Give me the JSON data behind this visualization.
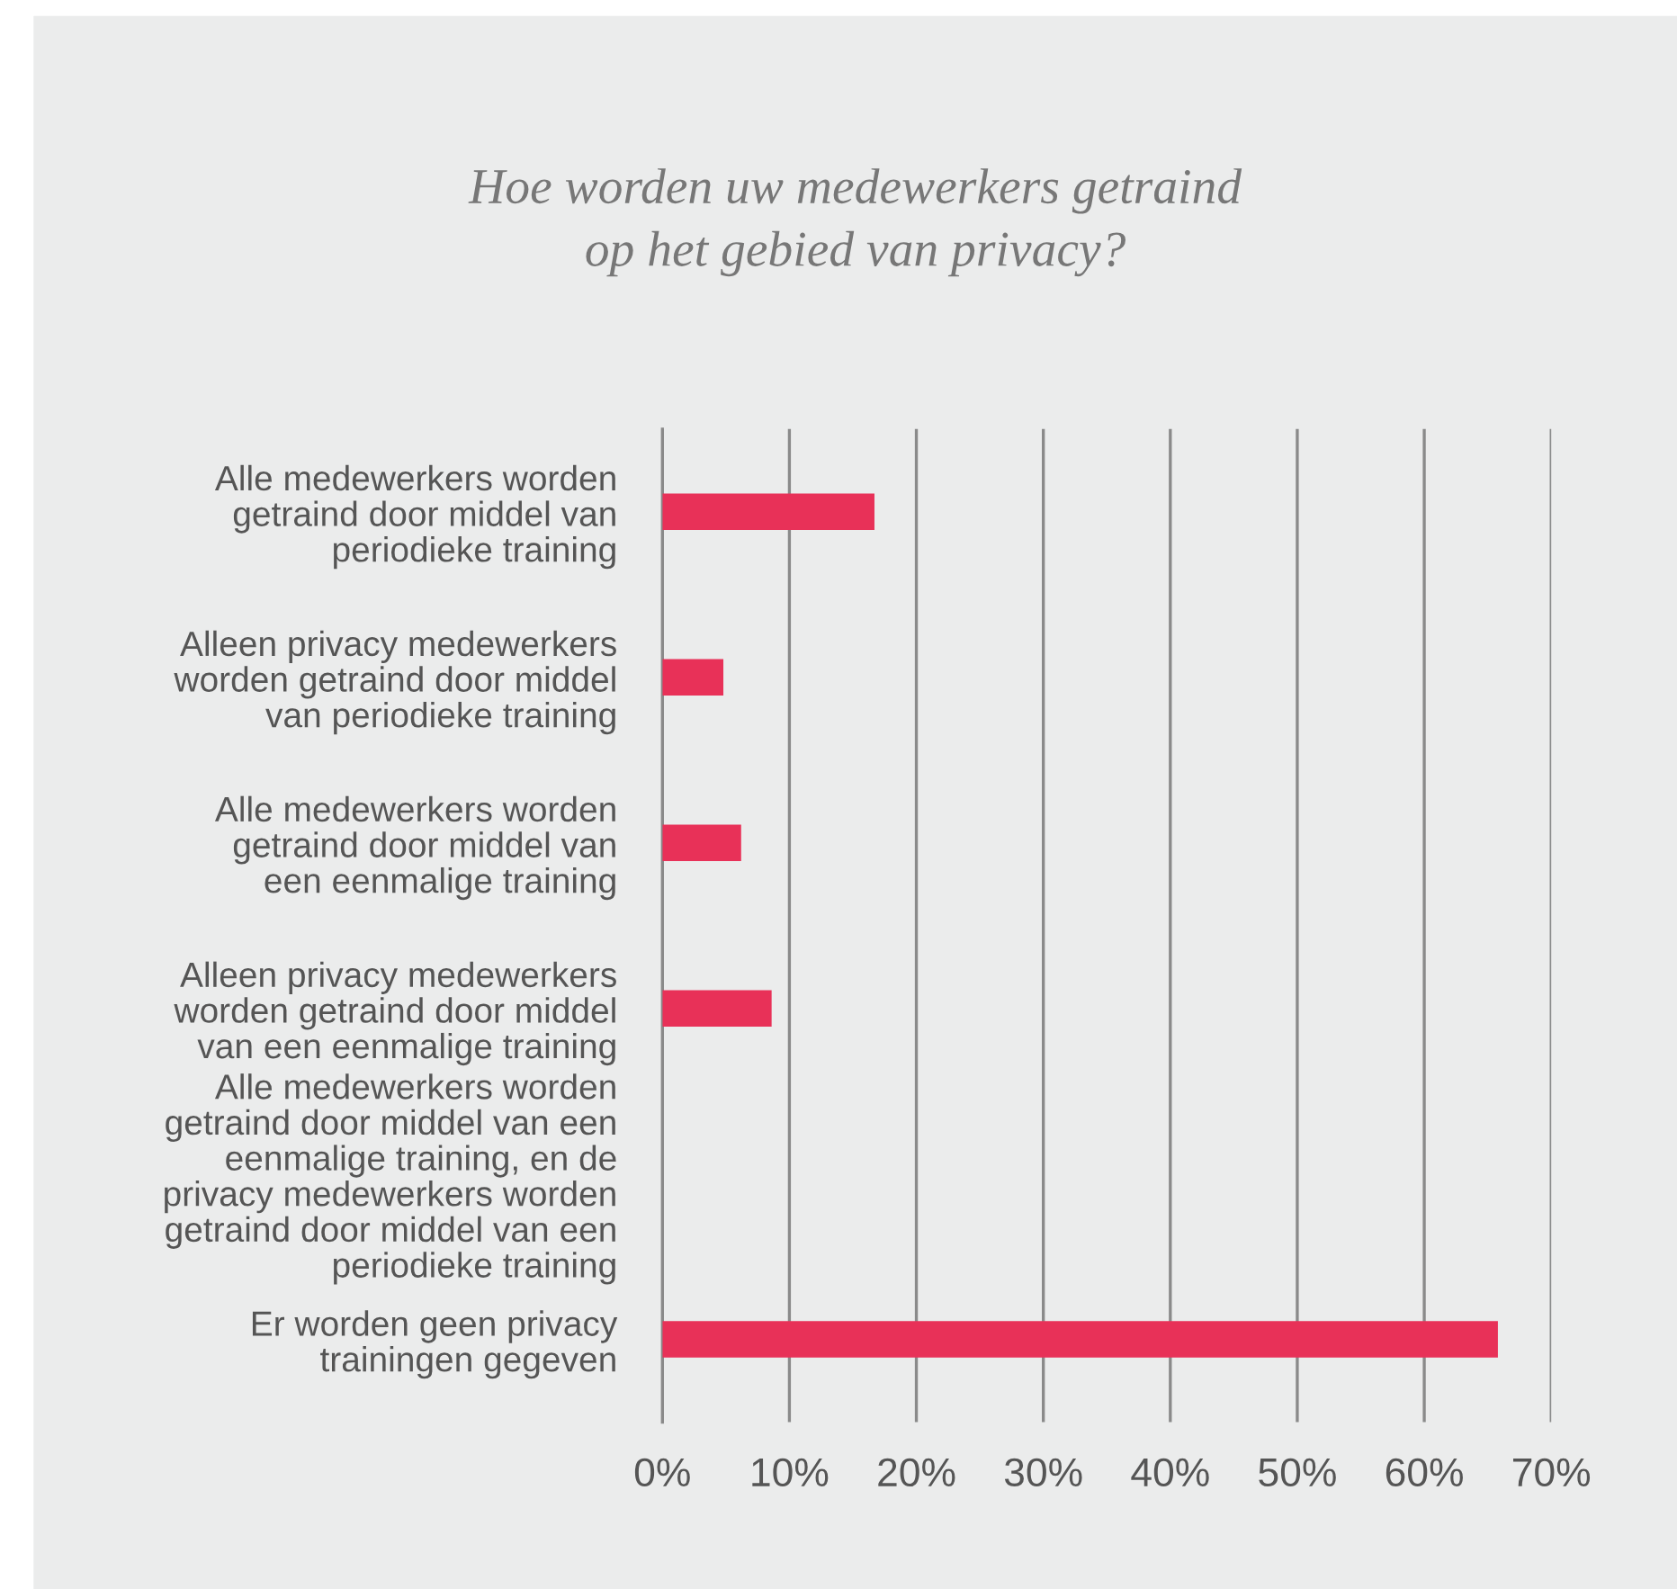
{
  "chart_data": {
    "type": "bar",
    "orientation": "horizontal",
    "title": "Hoe worden uw medewerkers getraind\nop het gebied van privacy?",
    "categories": [
      "Alle medewerkers worden\ngetraind door middel van\nperiodieke training",
      "Alleen privacy medewerkers\nworden getraind door middel\nvan periodieke training",
      "Alle medewerkers worden\ngetraind door middel van\neen eenmalige training",
      "Alleen privacy medewerkers\nworden getraind door middel\nvan een eenmalige training",
      "Alle medewerkers worden\ngetraind door middel van een\neenmalige training, en de\nprivacy medewerkers worden\ngetraind door middel van een\nperiodieke training",
      "Er worden geen privacy\ntrainingen gegeven"
    ],
    "values": [
      16.7,
      4.8,
      6.2,
      8.6,
      0,
      65.8
    ],
    "color": "#e83158",
    "xlim": [
      0,
      70
    ],
    "xticks": [
      {
        "value": 0,
        "label": "0%"
      },
      {
        "value": 10,
        "label": "10%"
      },
      {
        "value": 20,
        "label": "20%"
      },
      {
        "value": 30,
        "label": "30%"
      },
      {
        "value": 40,
        "label": "40%"
      },
      {
        "value": 50,
        "label": "50%"
      },
      {
        "value": 60,
        "label": "60%"
      },
      {
        "value": 70,
        "label": "70%"
      }
    ],
    "grid": "x",
    "legend": false
  }
}
